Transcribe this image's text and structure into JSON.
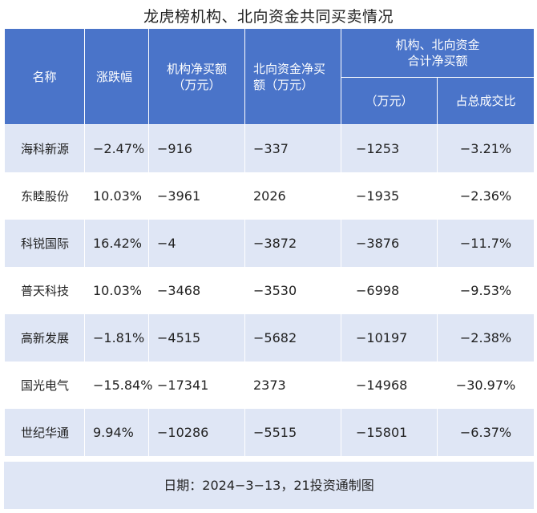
{
  "title": "龙虎榜机构、北向资金共同买卖情况",
  "headers": {
    "name": "名称",
    "change": "涨跌幅",
    "inst_line1": "机构净买额",
    "inst_line2": "（万元）",
    "north_line1": "北向资金净买",
    "north_line2": "额（万元）",
    "combined_line1": "机构、北向资金",
    "combined_line2": "合计净买额",
    "combined_unit": "（万元）",
    "ratio": "占总成交比"
  },
  "rows": [
    {
      "name": "海科新源",
      "change": "−2.47%",
      "inst": "−916",
      "north": "−337",
      "total": "−1253",
      "ratio": "−3.21%"
    },
    {
      "name": "东睦股份",
      "change": "10.03%",
      "inst": "−3961",
      "north": "2026",
      "total": "−1935",
      "ratio": "−2.36%"
    },
    {
      "name": "科锐国际",
      "change": "16.42%",
      "inst": "−4",
      "north": "−3872",
      "total": "−3876",
      "ratio": "−11.7%"
    },
    {
      "name": "普天科技",
      "change": "10.03%",
      "inst": "−3468",
      "north": "−3530",
      "total": "−6998",
      "ratio": "−9.53%"
    },
    {
      "name": "高新发展",
      "change": "−1.81%",
      "inst": "−4515",
      "north": "−5682",
      "total": "−10197",
      "ratio": "−2.38%"
    },
    {
      "name": "国光电气",
      "change": "−15.84%",
      "inst": "−17341",
      "north": "2373",
      "total": "−14968",
      "ratio": "−30.97%"
    },
    {
      "name": "世纪华通",
      "change": "9.94%",
      "inst": "−10286",
      "north": "−5515",
      "total": "−15801",
      "ratio": "−6.37%"
    }
  ],
  "footer": "日期：2024−3−13，21投资通制图",
  "colors": {
    "header_bg": "#4a74c9",
    "stripe": "#dfe6f5"
  }
}
